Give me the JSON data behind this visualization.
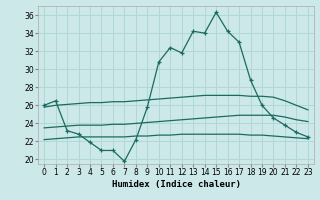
{
  "title": "",
  "xlabel": "Humidex (Indice chaleur)",
  "bg_color": "#cce8e8",
  "grid_color": "#b0d8d8",
  "line_color": "#1a6b60",
  "xlim": [
    -0.5,
    23.5
  ],
  "ylim": [
    19.5,
    37.0
  ],
  "xticks": [
    0,
    1,
    2,
    3,
    4,
    5,
    6,
    7,
    8,
    9,
    10,
    11,
    12,
    13,
    14,
    15,
    16,
    17,
    18,
    19,
    20,
    21,
    22,
    23
  ],
  "yticks": [
    20,
    22,
    24,
    26,
    28,
    30,
    32,
    34,
    36
  ],
  "series1_x": [
    0,
    1,
    2,
    3,
    4,
    5,
    6,
    7,
    8,
    9,
    10,
    11,
    12,
    13,
    14,
    15,
    16,
    17,
    18,
    19,
    20,
    21,
    22,
    23
  ],
  "series1_y": [
    26.0,
    26.5,
    23.2,
    22.8,
    21.9,
    21.0,
    21.0,
    19.8,
    22.2,
    25.8,
    30.8,
    32.4,
    31.8,
    34.2,
    34.0,
    36.3,
    34.2,
    33.0,
    28.8,
    26.0,
    24.6,
    23.8,
    23.0,
    22.5
  ],
  "series2_x": [
    0,
    1,
    2,
    3,
    4,
    5,
    6,
    7,
    8,
    9,
    10,
    11,
    12,
    13,
    14,
    15,
    16,
    17,
    18,
    19,
    20,
    21,
    22,
    23
  ],
  "series2_y": [
    25.8,
    26.0,
    26.1,
    26.2,
    26.3,
    26.3,
    26.4,
    26.4,
    26.5,
    26.6,
    26.7,
    26.8,
    26.9,
    27.0,
    27.1,
    27.1,
    27.1,
    27.1,
    27.0,
    27.0,
    26.9,
    26.5,
    26.0,
    25.5
  ],
  "series3_x": [
    0,
    1,
    2,
    3,
    4,
    5,
    6,
    7,
    8,
    9,
    10,
    11,
    12,
    13,
    14,
    15,
    16,
    17,
    18,
    19,
    20,
    21,
    22,
    23
  ],
  "series3_y": [
    23.5,
    23.6,
    23.7,
    23.8,
    23.8,
    23.8,
    23.9,
    23.9,
    24.0,
    24.1,
    24.2,
    24.3,
    24.4,
    24.5,
    24.6,
    24.7,
    24.8,
    24.9,
    24.9,
    24.9,
    24.9,
    24.7,
    24.4,
    24.2
  ],
  "series4_x": [
    0,
    1,
    2,
    3,
    4,
    5,
    6,
    7,
    8,
    9,
    10,
    11,
    12,
    13,
    14,
    15,
    16,
    17,
    18,
    19,
    20,
    21,
    22,
    23
  ],
  "series4_y": [
    22.2,
    22.3,
    22.4,
    22.5,
    22.5,
    22.5,
    22.5,
    22.5,
    22.6,
    22.6,
    22.7,
    22.7,
    22.8,
    22.8,
    22.8,
    22.8,
    22.8,
    22.8,
    22.7,
    22.7,
    22.6,
    22.5,
    22.4,
    22.3
  ]
}
